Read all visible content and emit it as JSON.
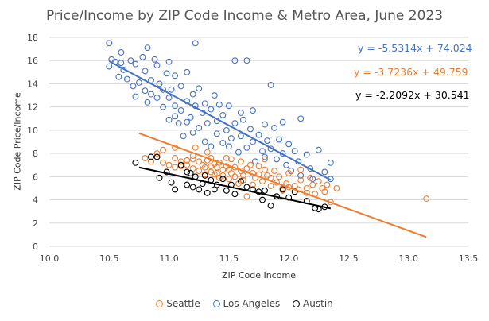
{
  "chart_data": {
    "type": "scatter",
    "title": "Price/Income by ZIP Code Income & Metro Area, June 2023",
    "xlabel": "ZIP Code Income",
    "ylabel": "ZIP Code Price/Income",
    "xlim": [
      10.0,
      13.5
    ],
    "ylim": [
      0,
      18
    ],
    "x_ticks": [
      10.0,
      10.5,
      11.0,
      11.5,
      12.0,
      12.5,
      13.0,
      13.5
    ],
    "x_tick_labels": [
      "10.0",
      "10.5",
      "11.0",
      "11.5",
      "12.0",
      "12.5",
      "13.0",
      "13.5"
    ],
    "y_ticks": [
      0,
      2,
      4,
      6,
      8,
      10,
      12,
      14,
      16,
      18
    ],
    "y_tick_labels": [
      "0",
      "2",
      "4",
      "6",
      "8",
      "10",
      "12",
      "14",
      "16",
      "18"
    ],
    "grid": "horizontal",
    "legend_position": "bottom",
    "series": [
      {
        "name": "Seattle",
        "color": "#ED7D31",
        "trendline": {
          "slope": -3.7236,
          "intercept": 49.759,
          "x_start": 10.75,
          "x_end": 13.15,
          "equation": "y = -3.7236x + 49.759"
        },
        "points": [
          [
            10.8,
            7.6
          ],
          [
            10.85,
            7.3
          ],
          [
            10.9,
            8.0
          ],
          [
            10.95,
            8.3
          ],
          [
            10.95,
            7.2
          ],
          [
            11.0,
            7.0
          ],
          [
            11.05,
            8.5
          ],
          [
            11.05,
            7.6
          ],
          [
            11.05,
            6.8
          ],
          [
            11.1,
            7.3
          ],
          [
            11.1,
            6.9
          ],
          [
            11.15,
            7.4
          ],
          [
            11.15,
            7.0
          ],
          [
            11.2,
            7.8
          ],
          [
            11.2,
            7.5
          ],
          [
            11.2,
            6.7
          ],
          [
            11.22,
            8.5
          ],
          [
            11.25,
            7.3
          ],
          [
            11.25,
            6.5
          ],
          [
            11.28,
            7.0
          ],
          [
            11.3,
            6.8
          ],
          [
            11.3,
            6.2
          ],
          [
            11.32,
            8.1
          ],
          [
            11.32,
            7.4
          ],
          [
            11.35,
            7.6
          ],
          [
            11.35,
            6.9
          ],
          [
            11.35,
            6.4
          ],
          [
            11.38,
            7.1
          ],
          [
            11.38,
            6.2
          ],
          [
            11.4,
            6.8
          ],
          [
            11.4,
            6.3
          ],
          [
            11.42,
            5.9
          ],
          [
            11.42,
            7.2
          ],
          [
            11.45,
            6.6
          ],
          [
            11.45,
            6.1
          ],
          [
            11.48,
            6.9
          ],
          [
            11.48,
            7.6
          ],
          [
            11.5,
            6.6
          ],
          [
            11.5,
            5.8
          ],
          [
            11.52,
            6.3
          ],
          [
            11.52,
            7.5
          ],
          [
            11.55,
            6.8
          ],
          [
            11.55,
            6.0
          ],
          [
            11.58,
            5.4
          ],
          [
            11.6,
            6.5
          ],
          [
            11.6,
            7.3
          ],
          [
            11.62,
            6.1
          ],
          [
            11.62,
            5.7
          ],
          [
            11.65,
            6.7
          ],
          [
            11.65,
            4.3
          ],
          [
            11.68,
            7.0
          ],
          [
            11.7,
            6.3
          ],
          [
            11.7,
            5.3
          ],
          [
            11.72,
            5.9
          ],
          [
            11.75,
            6.9
          ],
          [
            11.75,
            6.2
          ],
          [
            11.78,
            5.6
          ],
          [
            11.8,
            7.5
          ],
          [
            11.8,
            6.6
          ],
          [
            11.82,
            6.1
          ],
          [
            11.85,
            5.9
          ],
          [
            11.85,
            5.2
          ],
          [
            11.88,
            6.5
          ],
          [
            11.9,
            5.5
          ],
          [
            11.92,
            6.0
          ],
          [
            11.95,
            5.0
          ],
          [
            11.95,
            4.8
          ],
          [
            11.98,
            5.4
          ],
          [
            12.0,
            6.3
          ],
          [
            12.0,
            5.1
          ],
          [
            12.05,
            5.2
          ],
          [
            12.08,
            4.9
          ],
          [
            12.1,
            5.7
          ],
          [
            12.1,
            6.6
          ],
          [
            12.15,
            5.0
          ],
          [
            12.15,
            4.6
          ],
          [
            12.18,
            5.9
          ],
          [
            12.2,
            5.3
          ],
          [
            12.22,
            4.5
          ],
          [
            12.25,
            5.6
          ],
          [
            12.28,
            5.0
          ],
          [
            12.3,
            4.7
          ],
          [
            12.32,
            5.3
          ],
          [
            12.35,
            3.8
          ],
          [
            12.4,
            5.0
          ],
          [
            13.15,
            4.1
          ]
        ]
      },
      {
        "name": "Los Angeles",
        "color": "#4472C4",
        "trendline": {
          "slope": -5.5314,
          "intercept": 74.024,
          "x_start": 10.5,
          "x_end": 12.35,
          "equation": "y = -5.5314x + 74.024"
        },
        "points": [
          [
            10.5,
            17.5
          ],
          [
            10.5,
            15.5
          ],
          [
            10.52,
            16.1
          ],
          [
            10.55,
            15.9
          ],
          [
            10.58,
            14.6
          ],
          [
            10.6,
            15.8
          ],
          [
            10.6,
            16.7
          ],
          [
            10.62,
            15.2
          ],
          [
            10.65,
            14.4
          ],
          [
            10.68,
            16.0
          ],
          [
            10.7,
            13.8
          ],
          [
            10.72,
            15.7
          ],
          [
            10.72,
            12.9
          ],
          [
            10.75,
            14.1
          ],
          [
            10.78,
            16.3
          ],
          [
            10.8,
            13.4
          ],
          [
            10.8,
            15.1
          ],
          [
            10.82,
            12.4
          ],
          [
            10.82,
            17.1
          ],
          [
            10.85,
            14.3
          ],
          [
            10.85,
            13.1
          ],
          [
            10.88,
            16.1
          ],
          [
            10.9,
            12.8
          ],
          [
            10.9,
            15.6
          ],
          [
            10.92,
            14.0
          ],
          [
            10.95,
            12.0
          ],
          [
            10.95,
            13.5
          ],
          [
            10.98,
            14.9
          ],
          [
            11.0,
            10.9
          ],
          [
            11.0,
            12.8
          ],
          [
            11.0,
            15.9
          ],
          [
            11.02,
            13.5
          ],
          [
            11.05,
            11.2
          ],
          [
            11.05,
            12.1
          ],
          [
            11.05,
            14.7
          ],
          [
            11.08,
            10.6
          ],
          [
            11.1,
            13.8
          ],
          [
            11.1,
            11.7
          ],
          [
            11.12,
            9.5
          ],
          [
            11.15,
            12.5
          ],
          [
            11.15,
            10.7
          ],
          [
            11.15,
            15.0
          ],
          [
            11.18,
            11.1
          ],
          [
            11.2,
            13.1
          ],
          [
            11.2,
            9.8
          ],
          [
            11.22,
            17.5
          ],
          [
            11.22,
            12.1
          ],
          [
            11.25,
            10.2
          ],
          [
            11.25,
            13.6
          ],
          [
            11.28,
            11.5
          ],
          [
            11.3,
            9.0
          ],
          [
            11.3,
            12.3
          ],
          [
            11.32,
            10.6
          ],
          [
            11.35,
            8.6
          ],
          [
            11.35,
            11.8
          ],
          [
            11.38,
            13.0
          ],
          [
            11.4,
            9.7
          ],
          [
            11.4,
            10.8
          ],
          [
            11.42,
            12.2
          ],
          [
            11.45,
            8.9
          ],
          [
            11.45,
            11.3
          ],
          [
            11.48,
            10.0
          ],
          [
            11.5,
            8.6
          ],
          [
            11.5,
            12.1
          ],
          [
            11.52,
            9.3
          ],
          [
            11.55,
            10.6
          ],
          [
            11.55,
            16.0
          ],
          [
            11.58,
            8.1
          ],
          [
            11.6,
            11.5
          ],
          [
            11.6,
            9.5
          ],
          [
            11.62,
            10.9
          ],
          [
            11.65,
            8.5
          ],
          [
            11.65,
            16.0
          ],
          [
            11.68,
            10.1
          ],
          [
            11.7,
            9.0
          ],
          [
            11.7,
            11.7
          ],
          [
            11.72,
            7.3
          ],
          [
            11.75,
            9.6
          ],
          [
            11.78,
            8.2
          ],
          [
            11.8,
            10.5
          ],
          [
            11.8,
            7.7
          ],
          [
            11.82,
            9.1
          ],
          [
            11.85,
            13.9
          ],
          [
            11.85,
            8.4
          ],
          [
            11.88,
            10.2
          ],
          [
            11.9,
            7.5
          ],
          [
            11.92,
            9.2
          ],
          [
            11.95,
            8.0
          ],
          [
            11.95,
            10.7
          ],
          [
            11.98,
            7.0
          ],
          [
            12.0,
            8.8
          ],
          [
            12.02,
            6.5
          ],
          [
            12.05,
            8.2
          ],
          [
            12.08,
            7.3
          ],
          [
            12.1,
            11.0
          ],
          [
            12.1,
            6.1
          ],
          [
            12.15,
            7.9
          ],
          [
            12.18,
            6.7
          ],
          [
            12.2,
            5.8
          ],
          [
            12.25,
            8.3
          ],
          [
            12.3,
            6.4
          ],
          [
            12.35,
            7.2
          ],
          [
            12.35,
            5.8
          ]
        ]
      },
      {
        "name": "Austin",
        "color": "#000000",
        "trendline": {
          "slope": -2.2092,
          "intercept": 30.541,
          "x_start": 10.75,
          "x_end": 12.35,
          "equation": "y = -2.2092x + 30.541"
        },
        "points": [
          [
            10.72,
            7.2
          ],
          [
            10.85,
            7.7
          ],
          [
            10.9,
            7.7
          ],
          [
            10.92,
            5.9
          ],
          [
            10.98,
            6.4
          ],
          [
            11.02,
            5.5
          ],
          [
            11.05,
            4.9
          ],
          [
            11.1,
            7.0
          ],
          [
            11.15,
            6.4
          ],
          [
            11.15,
            5.3
          ],
          [
            11.18,
            6.3
          ],
          [
            11.2,
            5.1
          ],
          [
            11.22,
            6.0
          ],
          [
            11.25,
            4.9
          ],
          [
            11.28,
            5.4
          ],
          [
            11.3,
            6.1
          ],
          [
            11.32,
            4.6
          ],
          [
            11.35,
            5.7
          ],
          [
            11.38,
            4.9
          ],
          [
            11.4,
            5.3
          ],
          [
            11.45,
            5.8
          ],
          [
            11.48,
            4.8
          ],
          [
            11.52,
            5.3
          ],
          [
            11.55,
            4.5
          ],
          [
            11.6,
            5.6
          ],
          [
            11.65,
            5.1
          ],
          [
            11.7,
            4.9
          ],
          [
            11.75,
            4.7
          ],
          [
            11.78,
            4.0
          ],
          [
            11.8,
            4.8
          ],
          [
            11.85,
            3.5
          ],
          [
            11.9,
            4.3
          ],
          [
            11.95,
            4.9
          ],
          [
            12.0,
            4.2
          ],
          [
            12.05,
            4.7
          ],
          [
            12.15,
            3.9
          ],
          [
            12.22,
            3.3
          ],
          [
            12.25,
            3.2
          ],
          [
            12.3,
            3.4
          ]
        ]
      }
    ]
  }
}
